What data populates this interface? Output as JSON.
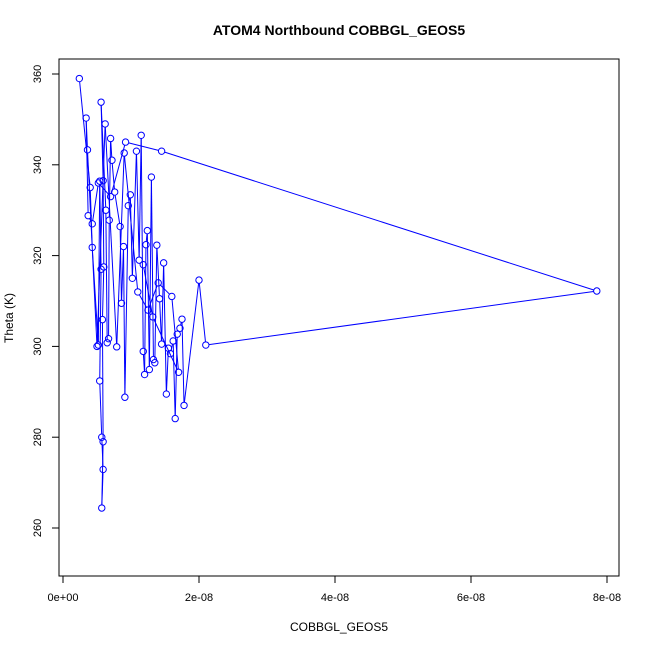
{
  "chart_data": {
    "type": "line",
    "title": "ATOM4 Northbound COBBGL_GEOS5",
    "xlabel": "COBBGL_GEOS5",
    "ylabel": "Theta (K)",
    "xlim": [
      0,
      8e-08
    ],
    "ylim": [
      250,
      362
    ],
    "x_ticks": [
      0,
      2e-08,
      4e-08,
      6e-08,
      8e-08
    ],
    "x_tick_labels": [
      "0e+00",
      "2e-08",
      "4e-08",
      "6e-08",
      "8e-08"
    ],
    "y_ticks": [
      260,
      280,
      300,
      320,
      340,
      360
    ],
    "y_tick_labels": [
      "260",
      "280",
      "300",
      "320",
      "340",
      "360"
    ],
    "grid": false,
    "marker": "open-circle",
    "color": "#0000ff",
    "series": [
      {
        "points": [
          [
            2.4e-09,
            359.0
          ],
          [
            4e-09,
            335.0
          ],
          [
            4.3e-09,
            321.8
          ],
          [
            5.2e-09,
            300.3
          ],
          [
            5.4e-09,
            336.4
          ],
          [
            5.6e-09,
            317.0
          ],
          [
            5.4e-09,
            292.4
          ],
          [
            5.7e-09,
            280.0
          ],
          [
            5.9e-09,
            272.9
          ],
          [
            5.7e-09,
            264.4
          ],
          [
            5.9e-09,
            279.0
          ],
          [
            5.8e-09,
            305.9
          ],
          [
            6e-09,
            317.5
          ],
          [
            5.9e-09,
            336.5
          ],
          [
            5.6e-09,
            353.8
          ],
          [
            6.3e-09,
            330.0
          ],
          [
            6.5e-09,
            300.8
          ],
          [
            6.7e-09,
            301.7
          ],
          [
            6.8e-09,
            327.8
          ],
          [
            7e-09,
            345.8
          ],
          [
            7.2e-09,
            341.0
          ],
          [
            7.6e-09,
            334.0
          ],
          [
            8.4e-09,
            326.4
          ],
          [
            8.6e-09,
            309.5
          ],
          [
            8.9e-09,
            322.0
          ],
          [
            9.1e-09,
            288.8
          ],
          [
            9.6e-09,
            331.0
          ],
          [
            9.9e-09,
            333.4
          ],
          [
            1.02e-08,
            315.0
          ],
          [
            1.08e-08,
            343.0
          ],
          [
            1.12e-08,
            319.0
          ],
          [
            1.15e-08,
            346.5
          ],
          [
            1.18e-08,
            298.9
          ],
          [
            1.2e-08,
            293.8
          ],
          [
            1.22e-08,
            322.4
          ],
          [
            1.24e-08,
            325.5
          ],
          [
            1.27e-08,
            294.9
          ],
          [
            1.3e-08,
            337.3
          ],
          [
            1.33e-08,
            297.1
          ],
          [
            1.35e-08,
            296.4
          ],
          [
            1.38e-08,
            322.3
          ],
          [
            1.42e-08,
            310.5
          ],
          [
            1.45e-08,
            300.5
          ],
          [
            1.48e-08,
            318.4
          ],
          [
            1.52e-08,
            289.5
          ],
          [
            1.55e-08,
            299.6
          ],
          [
            1.58e-08,
            298.4
          ],
          [
            1.62e-08,
            301.2
          ],
          [
            1.65e-08,
            284.1
          ],
          [
            1.68e-08,
            302.7
          ],
          [
            1.72e-08,
            304.0
          ],
          [
            1.75e-08,
            306.0
          ],
          [
            1.78e-08,
            287.0
          ],
          [
            2e-08,
            314.6
          ],
          [
            2.1e-08,
            300.3
          ],
          [
            7.85e-08,
            312.2
          ],
          [
            1.45e-08,
            343.0
          ],
          [
            9.2e-09,
            345.0
          ],
          [
            7e-09,
            333.0
          ],
          [
            5.2e-09,
            336.0
          ],
          [
            4.3e-09,
            327.0
          ],
          [
            3.7e-09,
            328.8
          ],
          [
            3.4e-09,
            350.3
          ],
          [
            3.6e-09,
            343.3
          ],
          [
            5e-09,
            300.0
          ],
          [
            6.2e-09,
            349.0
          ],
          [
            7.9e-09,
            299.9
          ],
          [
            9e-09,
            342.6
          ],
          [
            1.1e-08,
            312.0
          ],
          [
            1.25e-08,
            308.0
          ],
          [
            1.4e-08,
            314.0
          ],
          [
            1.6e-08,
            311.0
          ],
          [
            1.7e-08,
            294.3
          ],
          [
            1.32e-08,
            306.5
          ],
          [
            1.18e-08,
            318.0
          ]
        ]
      }
    ]
  }
}
